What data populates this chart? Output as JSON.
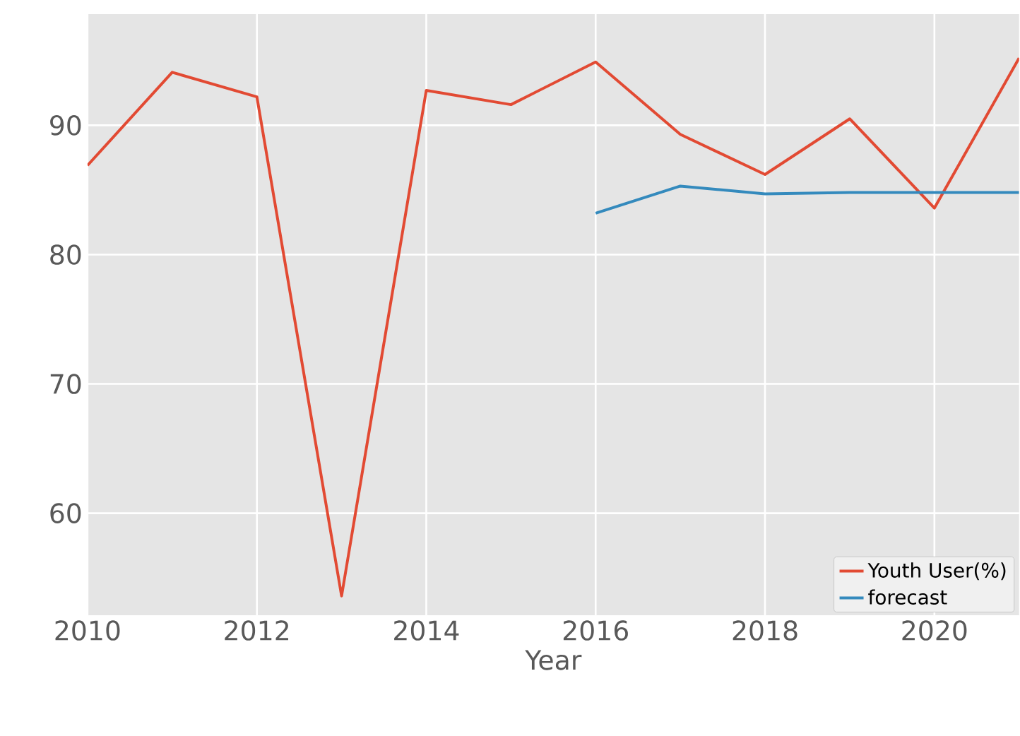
{
  "chart_data": {
    "type": "line",
    "xlabel": "Year",
    "xlim": [
      2010,
      2021
    ],
    "xticks": [
      2010,
      2012,
      2014,
      2016,
      2018,
      2020
    ],
    "ylim": [
      52.1,
      98.6
    ],
    "yticks": [
      60,
      70,
      80,
      90
    ],
    "grid": true,
    "legend": "bottom right",
    "marker": "none",
    "line_style": "solid",
    "series": [
      {
        "name": "Youth User(%)",
        "color": "#e24a33",
        "x": [
          2010,
          2011,
          2012,
          2013,
          2014,
          2015,
          2016,
          2017,
          2018,
          2019,
          2020,
          2021
        ],
        "values": [
          86.9,
          94.1,
          92.2,
          53.6,
          92.7,
          91.6,
          94.9,
          89.3,
          86.2,
          90.5,
          83.6,
          95.2
        ]
      },
      {
        "name": "forecast",
        "color": "#348abd",
        "x": [
          2016,
          2017,
          2018,
          2019,
          2020,
          2021
        ],
        "values": [
          83.2,
          85.3,
          84.7,
          84.8,
          84.8,
          84.8
        ]
      }
    ]
  }
}
